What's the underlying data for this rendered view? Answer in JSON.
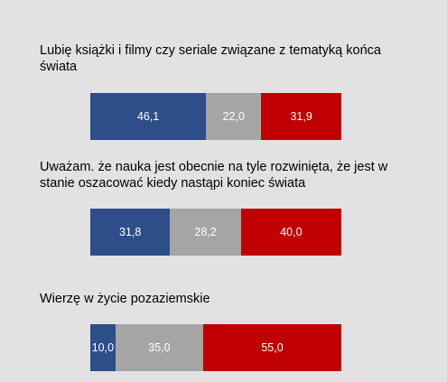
{
  "chart_data": {
    "type": "bar",
    "orientation": "horizontal",
    "stacked": true,
    "percent_stacked": true,
    "title": "",
    "xlabel": "",
    "ylabel": "",
    "xlim": [
      0,
      100
    ],
    "grid": false,
    "legend": "none",
    "categories": [
      "Lubię książki i filmy czy seriale związane z tematyką końca świata",
      "Uważam. że nauka jest obecnie na tyle rozwinięta, że jest w stanie oszacować kiedy nastąpi koniec świata",
      "Wierzę w życie pozaziemskie"
    ],
    "series": [
      {
        "values": [
          46.1,
          31.8,
          10.0
        ],
        "labels": [
          "46,1",
          "31,8",
          "10,0"
        ],
        "color": "#2e4e8a"
      },
      {
        "values": [
          22.0,
          28.2,
          35.0
        ],
        "labels": [
          "22,0",
          "28,2",
          "35,0"
        ],
        "color": "#a5a5a5"
      },
      {
        "values": [
          31.9,
          40.0,
          55.0
        ],
        "labels": [
          "31,9",
          "40,0",
          "55,0"
        ],
        "color": "#c00000"
      }
    ]
  }
}
